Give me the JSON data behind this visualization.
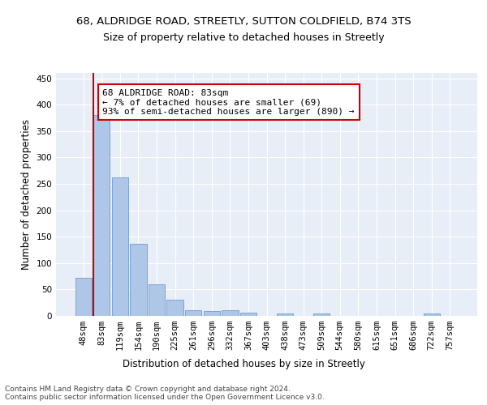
{
  "title1": "68, ALDRIDGE ROAD, STREETLY, SUTTON COLDFIELD, B74 3TS",
  "title2": "Size of property relative to detached houses in Streetly",
  "xlabel": "Distribution of detached houses by size in Streetly",
  "ylabel": "Number of detached properties",
  "bar_labels": [
    "48sqm",
    "83sqm",
    "119sqm",
    "154sqm",
    "190sqm",
    "225sqm",
    "261sqm",
    "296sqm",
    "332sqm",
    "367sqm",
    "403sqm",
    "438sqm",
    "473sqm",
    "509sqm",
    "544sqm",
    "580sqm",
    "615sqm",
    "651sqm",
    "686sqm",
    "722sqm",
    "757sqm"
  ],
  "bar_values": [
    72,
    380,
    262,
    136,
    60,
    30,
    11,
    9,
    11,
    6,
    0,
    5,
    0,
    4,
    0,
    0,
    0,
    0,
    0,
    5,
    0
  ],
  "bar_color": "#aec6e8",
  "bar_edge_color": "#5a8fc2",
  "highlight_index": 1,
  "highlight_color": "#cc0000",
  "annotation_text": "68 ALDRIDGE ROAD: 83sqm\n← 7% of detached houses are smaller (69)\n93% of semi-detached houses are larger (890) →",
  "annotation_box_color": "white",
  "annotation_box_edge": "#cc0000",
  "ylim": [
    0,
    460
  ],
  "yticks": [
    0,
    50,
    100,
    150,
    200,
    250,
    300,
    350,
    400,
    450
  ],
  "footer": "Contains HM Land Registry data © Crown copyright and database right 2024.\nContains public sector information licensed under the Open Government Licence v3.0.",
  "bg_color": "#e8eef8",
  "grid_color": "#ffffff",
  "title1_fontsize": 9.5,
  "title2_fontsize": 9,
  "axis_label_fontsize": 8.5,
  "tick_fontsize": 7.5,
  "annotation_fontsize": 8,
  "footer_fontsize": 6.5
}
